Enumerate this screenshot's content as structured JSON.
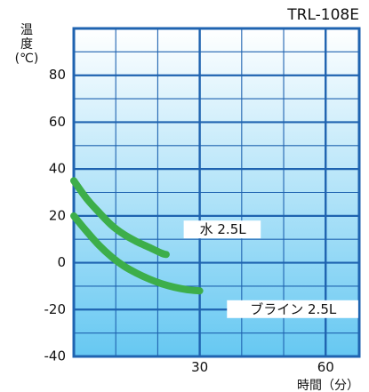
{
  "chart_data": {
    "type": "line",
    "title": "TRL-108E",
    "ylabel": "温\n度\n(℃)",
    "xlabel": "時間（分）",
    "xlim": [
      0,
      68
    ],
    "ylim": [
      -40,
      100
    ],
    "x_tick_labels": [
      "30",
      "60"
    ],
    "x_tick_values": [
      30,
      60
    ],
    "y_tick_labels": [
      "80",
      "60",
      "40",
      "20",
      "0",
      "-20",
      "-40"
    ],
    "y_tick_values": [
      80,
      60,
      40,
      20,
      0,
      -20,
      -40
    ],
    "grid": true,
    "series": [
      {
        "name": "水 2.5L",
        "color": "#3dae4a",
        "x": [
          0,
          3,
          6,
          9,
          12,
          15,
          18,
          21,
          22
        ],
        "y": [
          35,
          27.5,
          21.5,
          16,
          12,
          9,
          6.5,
          4,
          3.5
        ]
      },
      {
        "name": "ブライン 2.5L",
        "color": "#3dae4a",
        "x": [
          0,
          3,
          6,
          9,
          12,
          15,
          18,
          21,
          24,
          27,
          30
        ],
        "y": [
          20,
          13.5,
          7.5,
          2.5,
          -1.5,
          -4.5,
          -7,
          -9,
          -10.5,
          -11.5,
          -12
        ]
      }
    ],
    "annotations": [
      {
        "text": "水 2.5L",
        "x": 30,
        "y": 14
      },
      {
        "text": "ブライン 2.5L",
        "x": 42,
        "y": -20
      }
    ],
    "colors": {
      "background_top": "#ffffff",
      "background_bottom": "#66c8f2",
      "grid": "#1f63b0"
    }
  }
}
